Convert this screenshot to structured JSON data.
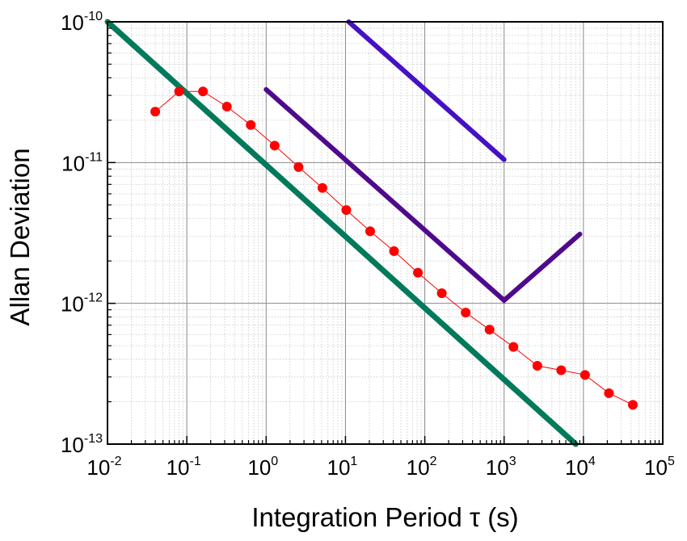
{
  "chart_data": {
    "type": "line",
    "title": "",
    "xlabel": "Integration Period τ (s)",
    "ylabel": "Allan Deviation",
    "xscale": "log",
    "yscale": "log",
    "xlim": [
      0.01,
      100000
    ],
    "ylim": [
      1e-13,
      1e-10
    ],
    "grid": true,
    "legend": "none",
    "x_ticks": [
      {
        "base": "10",
        "exp": "-2"
      },
      {
        "base": "10",
        "exp": "-1"
      },
      {
        "base": "10",
        "exp": "0"
      },
      {
        "base": "10",
        "exp": "1"
      },
      {
        "base": "10",
        "exp": "2"
      },
      {
        "base": "10",
        "exp": "3"
      },
      {
        "base": "10",
        "exp": "4"
      },
      {
        "base": "10",
        "exp": "5"
      }
    ],
    "y_ticks": [
      {
        "base": "10",
        "exp": "-10"
      },
      {
        "base": "10",
        "exp": "-11"
      },
      {
        "base": "10",
        "exp": "-12"
      },
      {
        "base": "10",
        "exp": "-13"
      }
    ],
    "series": [
      {
        "style": "line",
        "color": "#007a5a",
        "x": [
          0.01,
          8000
        ],
        "y": [
          1e-10,
          1e-13
        ]
      },
      {
        "style": "line",
        "color": "#4411c4",
        "x": [
          11,
          1000
        ],
        "y": [
          1e-10,
          1.05e-11
        ]
      },
      {
        "style": "line",
        "color": "#4f0a8c",
        "x": [
          1,
          1000,
          9000
        ],
        "y": [
          3.3e-11,
          1.05e-12,
          3.1e-12
        ]
      },
      {
        "style": "markers+line",
        "color": "#ff0000",
        "x": [
          0.04,
          0.08,
          0.16,
          0.32,
          0.64,
          1.28,
          2.56,
          5.12,
          10.24,
          20.48,
          40.96,
          81.92,
          163.84,
          327.68,
          655.36,
          1310.72,
          2621.44,
          5242.88,
          10485.76,
          20971.52,
          41943.04
        ],
        "y": [
          2.3e-11,
          3.2e-11,
          3.2e-11,
          2.5e-11,
          1.85e-11,
          1.32e-11,
          9.3e-12,
          6.6e-12,
          4.6e-12,
          3.25e-12,
          2.35e-12,
          1.65e-12,
          1.18e-12,
          8.6e-13,
          6.5e-13,
          4.9e-13,
          3.6e-13,
          3.35e-13,
          3.1e-13,
          2.3e-13,
          1.9e-13
        ]
      }
    ]
  }
}
